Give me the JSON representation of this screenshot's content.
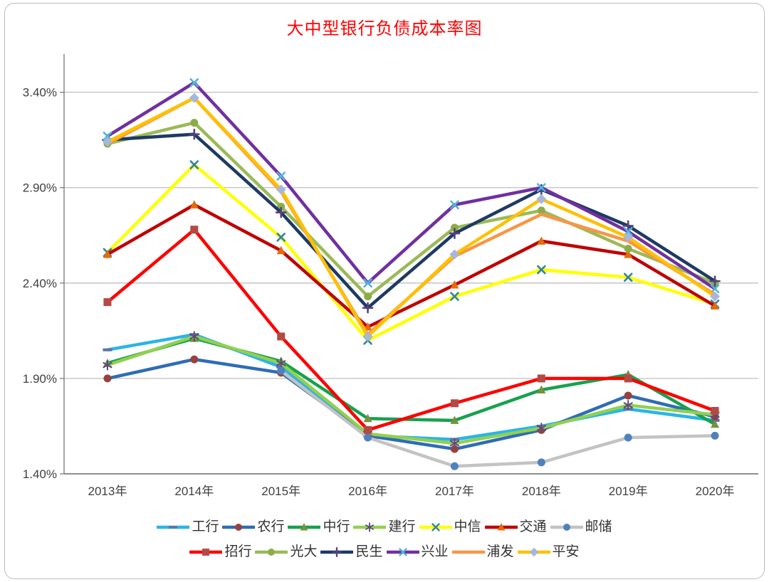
{
  "frame": {
    "border_color": "#b9bdbf"
  },
  "title": {
    "text": "大中型银行负债成本率图",
    "color": "#ff0000"
  },
  "chart_data": {
    "type": "line",
    "title": "大中型银行负债成本率图",
    "categories": [
      "2013年",
      "2014年",
      "2015年",
      "2016年",
      "2017年",
      "2018年",
      "2019年",
      "2020年"
    ],
    "xlabel": "",
    "ylabel": "",
    "y_axis": {
      "min": 1.4,
      "max": 3.6,
      "tick_values": [
        1.4,
        1.9,
        2.4,
        2.9,
        3.4
      ],
      "tick_labels": [
        "1.40%",
        "1.90%",
        "2.40%",
        "2.90%",
        "3.40%"
      ],
      "grid": true,
      "grid_color": "#bfbfbf",
      "axis_color": "#7f7f7f"
    },
    "legend_position": "bottom",
    "legend_rows": [
      7,
      6
    ],
    "series": [
      {
        "name": "工行",
        "line_color": "#29b5e8",
        "marker": "dash",
        "marker_color": "#5e72a4",
        "values": [
          2.05,
          2.13,
          1.96,
          1.6,
          1.58,
          1.65,
          1.74,
          1.68
        ]
      },
      {
        "name": "农行",
        "line_color": "#2e6db5",
        "marker": "circle",
        "marker_color": "#98423e",
        "values": [
          1.9,
          2.0,
          1.93,
          1.6,
          1.53,
          1.63,
          1.81,
          1.7
        ]
      },
      {
        "name": "中行",
        "line_color": "#18a14e",
        "marker": "triangle",
        "marker_color": "#76923c",
        "values": [
          1.98,
          2.11,
          1.99,
          1.69,
          1.68,
          1.84,
          1.92,
          1.66
        ]
      },
      {
        "name": "建行",
        "line_color": "#92d050",
        "marker": "asterisk",
        "marker_color": "#5f497a",
        "values": [
          1.97,
          2.12,
          1.98,
          1.61,
          1.56,
          1.64,
          1.76,
          1.71
        ]
      },
      {
        "name": "中信",
        "line_color": "#ffff00",
        "marker": "x",
        "marker_color": "#31849b",
        "values": [
          2.56,
          3.02,
          2.64,
          2.1,
          2.33,
          2.47,
          2.43,
          2.29
        ]
      },
      {
        "name": "交通",
        "line_color": "#c00000",
        "marker": "triangle",
        "marker_color": "#e36c0a",
        "values": [
          2.55,
          2.81,
          2.57,
          2.17,
          2.39,
          2.62,
          2.55,
          2.28
        ]
      },
      {
        "name": "邮储",
        "line_color": "#c3c3c3",
        "marker": "circle",
        "marker_color": "#4f81bd",
        "values": [
          null,
          null,
          1.94,
          1.59,
          1.44,
          1.46,
          1.59,
          1.6
        ]
      },
      {
        "name": "招行",
        "line_color": "#fe0000",
        "marker": "square",
        "marker_color": "#b34a43",
        "values": [
          2.3,
          2.68,
          2.12,
          1.63,
          1.77,
          1.9,
          1.9,
          1.73
        ]
      },
      {
        "name": "光大",
        "line_color": "#9aba58",
        "marker": "circle",
        "marker_color": "#8cac48",
        "values": [
          3.13,
          3.24,
          2.8,
          2.33,
          2.69,
          2.78,
          2.58,
          2.4
        ]
      },
      {
        "name": "民生",
        "line_color": "#1e3a63",
        "marker": "plus",
        "marker_color": "#53427c",
        "values": [
          3.15,
          3.18,
          2.77,
          2.27,
          2.66,
          2.89,
          2.7,
          2.41
        ]
      },
      {
        "name": "兴业",
        "line_color": "#7030a0",
        "marker": "x",
        "marker_color": "#4fb6dc",
        "values": [
          3.17,
          3.45,
          2.96,
          2.4,
          2.81,
          2.9,
          2.67,
          2.37
        ]
      },
      {
        "name": "浦发",
        "line_color": "#f79646",
        "marker": "none",
        "marker_color": "#f79646",
        "values": [
          3.13,
          3.37,
          2.88,
          2.13,
          2.54,
          2.76,
          2.62,
          2.34
        ]
      },
      {
        "name": "平安",
        "line_color": "#ffc000",
        "marker": "diamond",
        "marker_color": "#a6b7d9",
        "values": [
          3.14,
          3.37,
          2.89,
          2.12,
          2.55,
          2.84,
          2.64,
          2.33
        ]
      }
    ]
  }
}
